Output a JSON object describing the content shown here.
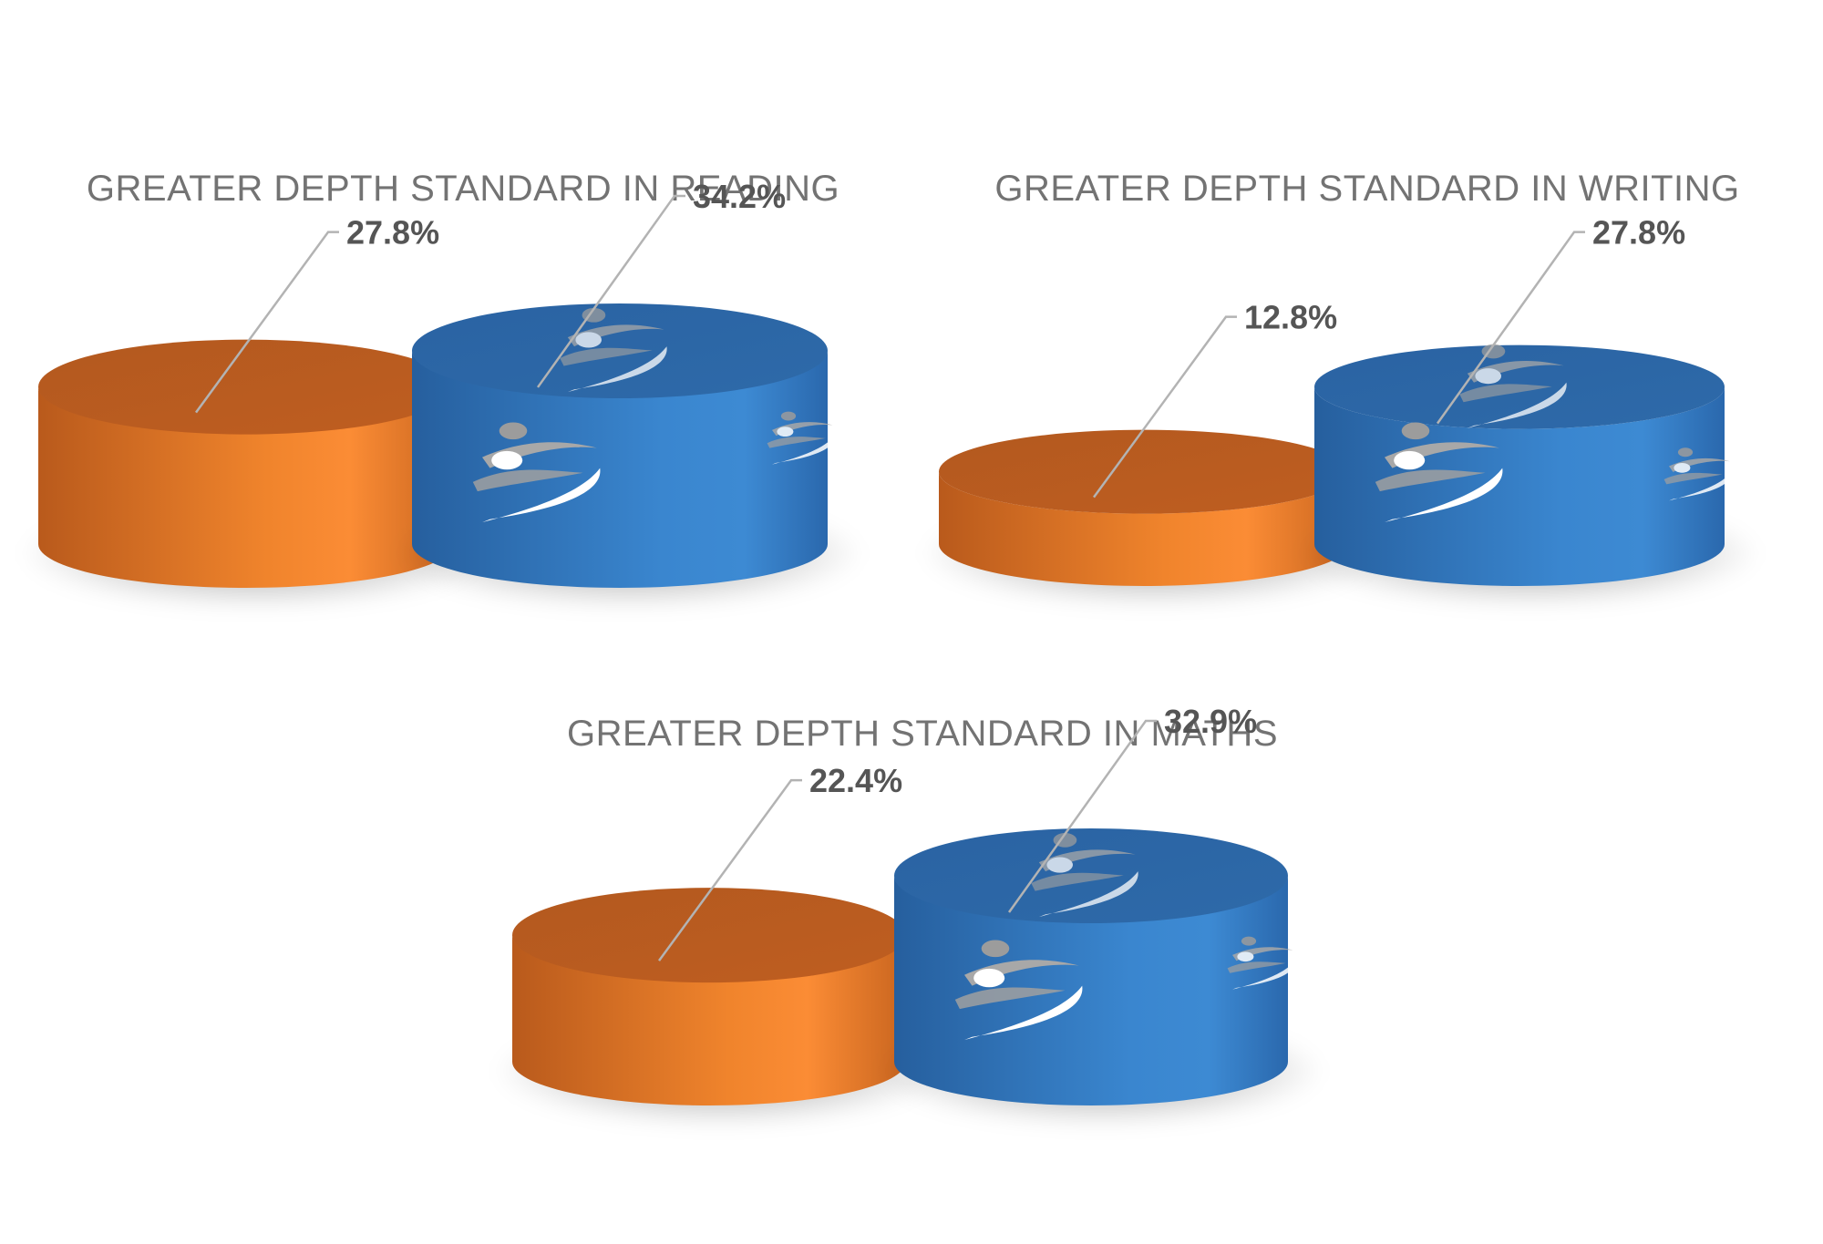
{
  "colors": {
    "series_a": "#f0842c",
    "series_b": "#2e6fb4",
    "title_text": "#737373",
    "label_text": "#555555",
    "leader_line": "#b3b3b3"
  },
  "logo_icon": "running-figure-logo-icon",
  "chart_data": [
    {
      "type": "bar",
      "title": "GREATER DEPTH STANDARD IN READING",
      "categories": [
        "",
        ""
      ],
      "values": [
        27.8,
        34.2
      ],
      "labels": [
        "27.8%",
        "34.2%"
      ],
      "unit": "%",
      "legend": "none",
      "grid": false
    },
    {
      "type": "bar",
      "title": "GREATER DEPTH STANDARD IN WRITING",
      "categories": [
        "",
        ""
      ],
      "values": [
        12.8,
        27.8
      ],
      "labels": [
        "12.8%",
        "27.8%"
      ],
      "unit": "%",
      "legend": "none",
      "grid": false
    },
    {
      "type": "bar",
      "title": "GREATER DEPTH STANDARD IN MATHS",
      "categories": [
        "",
        ""
      ],
      "values": [
        22.4,
        32.9
      ],
      "labels": [
        "22.4%",
        "32.9%"
      ],
      "unit": "%",
      "legend": "none",
      "grid": false
    }
  ]
}
